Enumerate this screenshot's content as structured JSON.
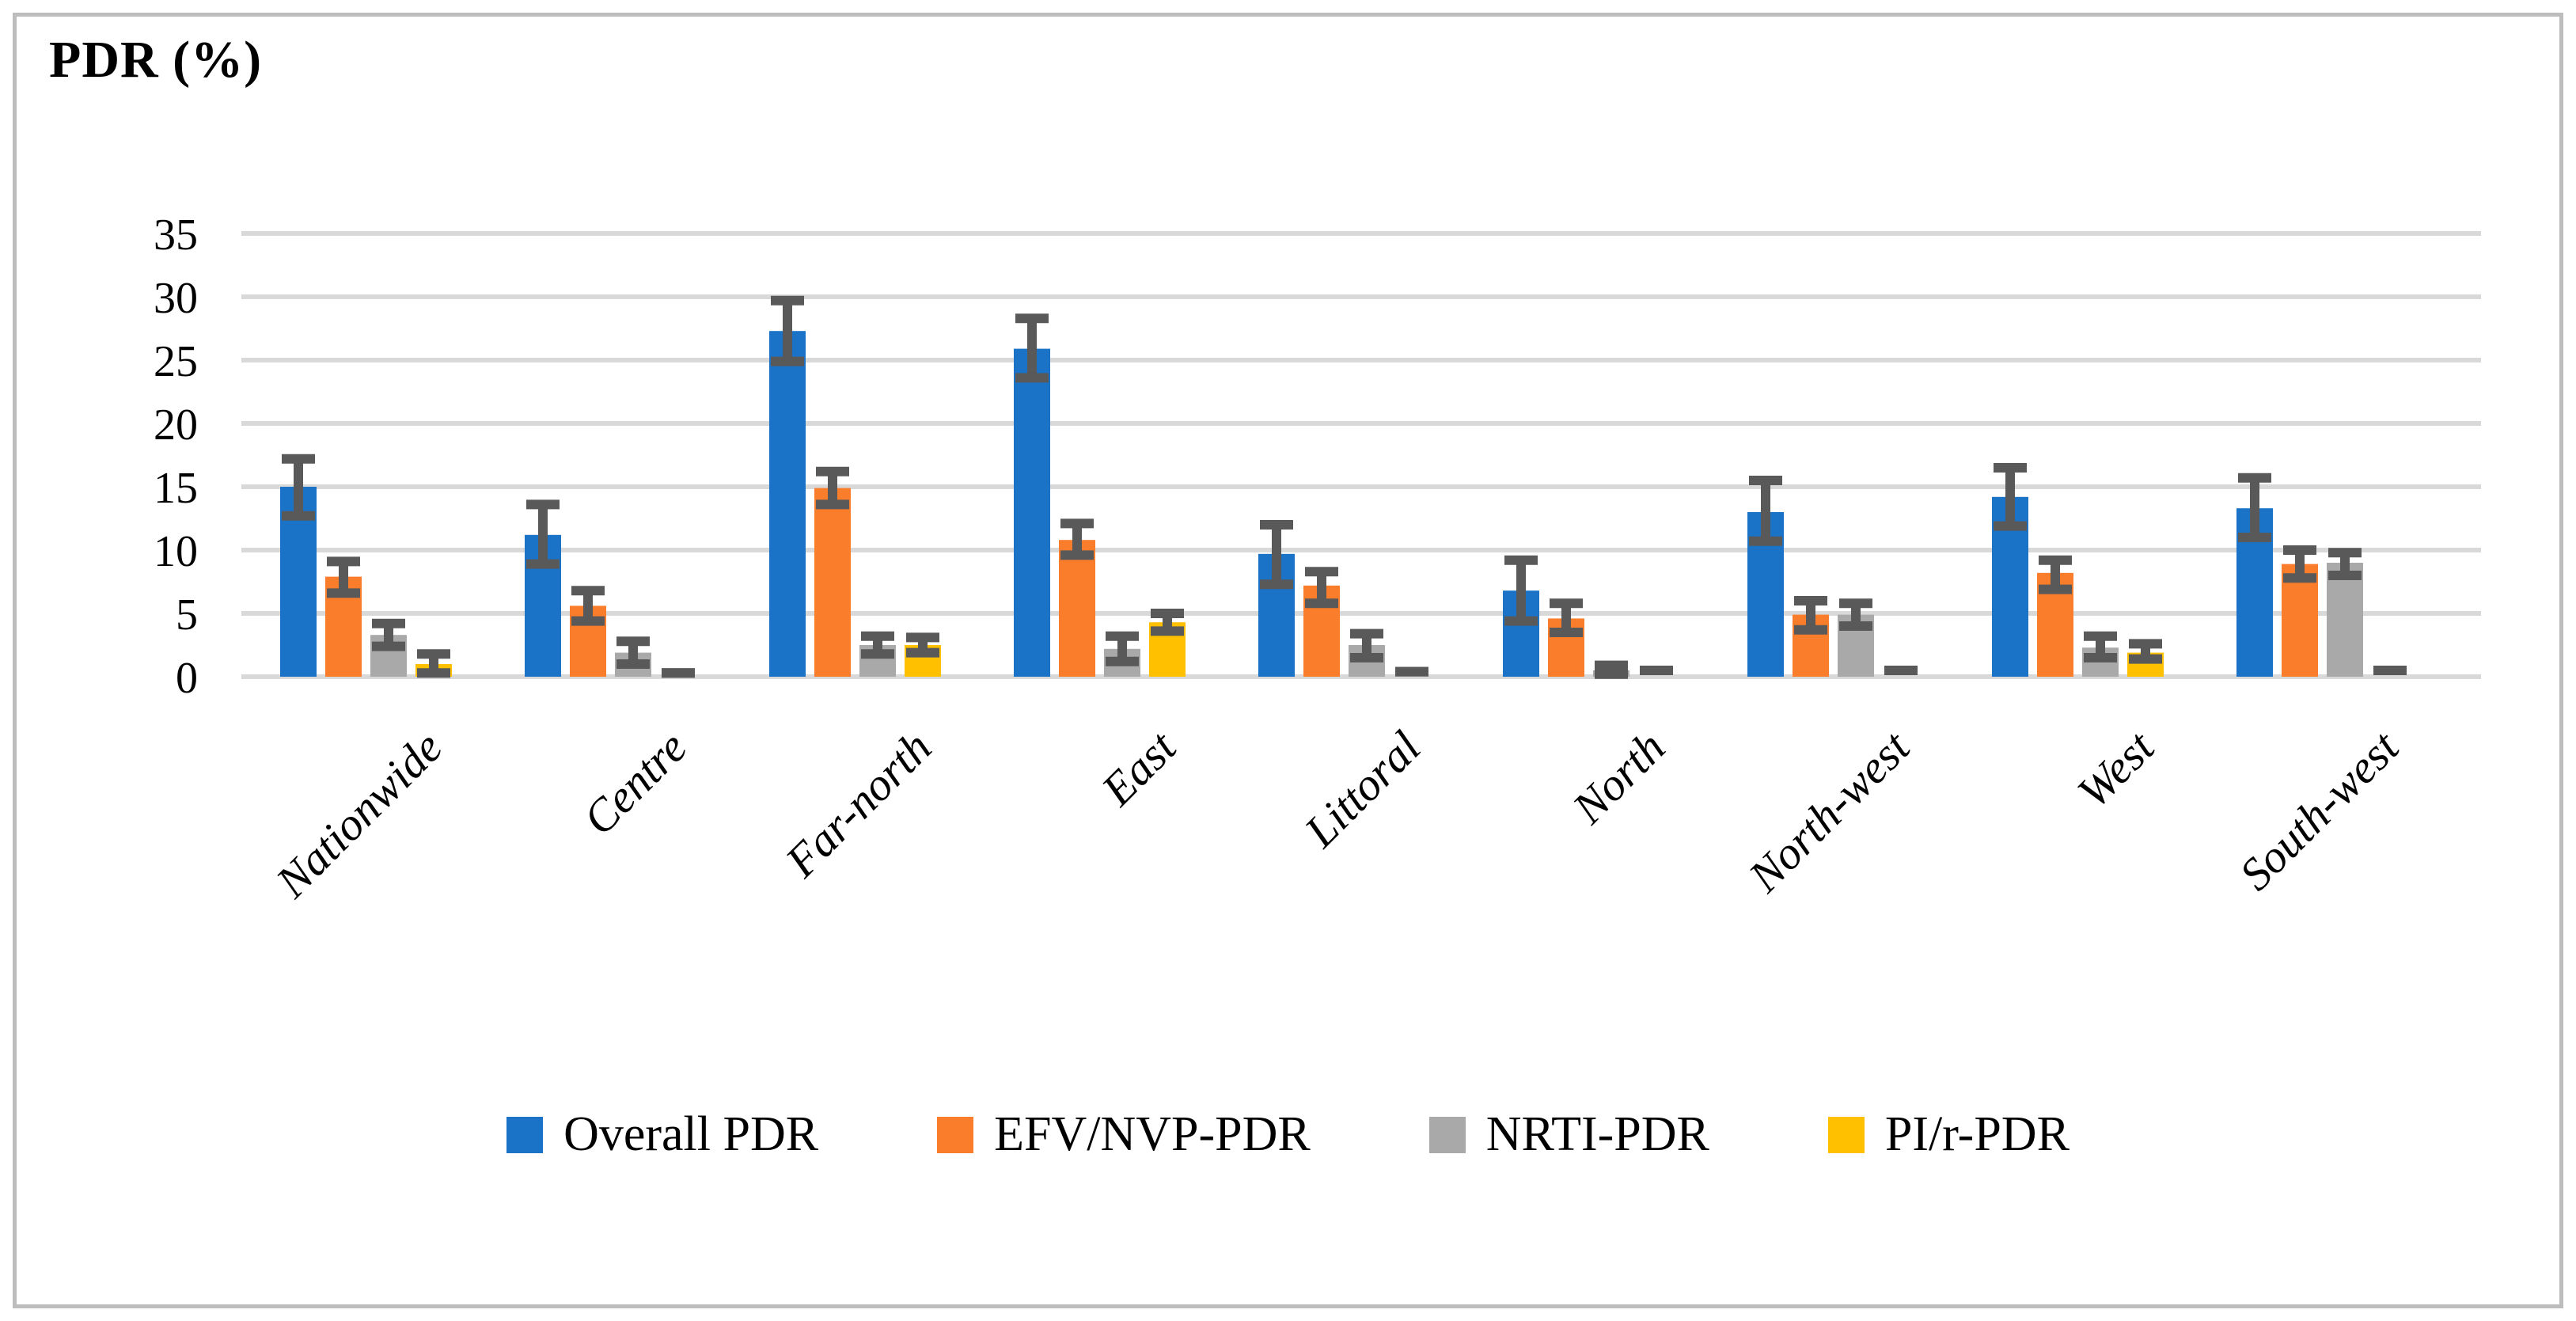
{
  "figure": {
    "title": "PDR (%)"
  },
  "chart_data": {
    "type": "bar",
    "title": "PDR (%)",
    "xlabel": "",
    "ylabel": "PDR (%)",
    "ylim": [
      0,
      35
    ],
    "yticks": [
      0,
      5,
      10,
      15,
      20,
      25,
      30,
      35
    ],
    "grid": "horizontal",
    "legend_position": "bottom",
    "error_bars": true,
    "error_bar_color": "#595959",
    "gridline_color": "#d9d9d9",
    "categories": [
      "Nationwide",
      "Centre",
      "Far-north",
      "East",
      "Littoral",
      "North",
      "North-west",
      "West",
      "South-west"
    ],
    "series": [
      {
        "name": "Overall PDR",
        "color": "#1b73c7",
        "values": [
          15.0,
          11.2,
          27.3,
          25.9,
          9.7,
          6.8,
          13.0,
          14.2,
          13.3
        ],
        "ci_low": [
          12.7,
          8.9,
          24.9,
          23.6,
          7.3,
          4.4,
          10.7,
          11.9,
          11.0
        ],
        "ci_high": [
          17.2,
          13.6,
          29.7,
          28.3,
          12.0,
          9.2,
          15.5,
          16.5,
          15.7
        ]
      },
      {
        "name": "EFV/NVP-PDR",
        "color": "#f97d2b",
        "values": [
          7.9,
          5.6,
          14.9,
          10.8,
          7.2,
          4.6,
          4.9,
          8.2,
          8.9
        ],
        "ci_low": [
          6.6,
          4.4,
          13.6,
          9.6,
          5.8,
          3.5,
          3.7,
          6.9,
          7.8
        ],
        "ci_high": [
          9.1,
          6.8,
          16.2,
          12.1,
          8.3,
          5.8,
          6.0,
          9.2,
          10.0
        ]
      },
      {
        "name": "NRTI-PDR",
        "color": "#a9a9a9",
        "values": [
          3.3,
          1.9,
          2.5,
          2.2,
          2.5,
          0.5,
          4.9,
          2.3,
          9.0
        ],
        "ci_low": [
          2.4,
          1.0,
          1.8,
          1.2,
          1.5,
          0.2,
          4.0,
          1.5,
          8.0
        ],
        "ci_high": [
          4.2,
          2.8,
          3.2,
          3.2,
          3.4,
          0.9,
          5.8,
          3.2,
          9.8
        ]
      },
      {
        "name": "PI/r-PDR",
        "color": "#ffc000",
        "values": [
          1.0,
          0.0,
          2.5,
          4.3,
          0.0,
          0.0,
          0.0,
          1.9,
          0.0
        ],
        "ci_low": [
          0.3,
          0.3,
          1.9,
          3.6,
          0.4,
          0.5,
          0.5,
          1.4,
          0.5
        ],
        "ci_high": [
          1.8,
          0.3,
          3.1,
          5.0,
          0.4,
          0.5,
          0.5,
          2.6,
          0.5
        ]
      }
    ]
  }
}
